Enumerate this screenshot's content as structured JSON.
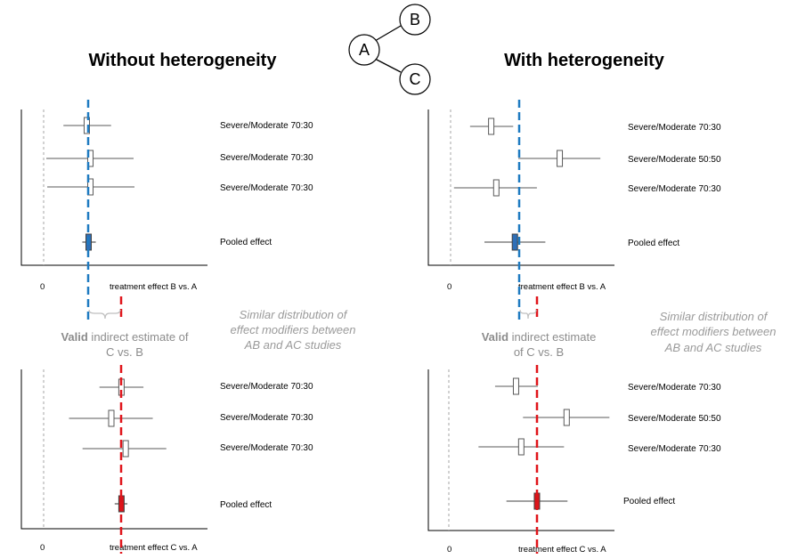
{
  "network": {
    "nodes": [
      "A",
      "B",
      "C"
    ]
  },
  "colors": {
    "blue_line": "#1f7bc1",
    "red_line": "#e0141a",
    "blue_fill": "#2e6fb7",
    "red_fill": "#d8141a",
    "zero_line": "#a6a6a6",
    "gray_text": "#9a9a9a"
  },
  "left": {
    "title": "Without heterogeneity",
    "top": {
      "zero_label": "0",
      "axis_label": "treatment effect B vs. A",
      "studies": [
        {
          "label": "Severe/Moderate 70:30",
          "est": 0.48,
          "lo": 0.22,
          "hi": 0.75
        },
        {
          "label": "Severe/Moderate 70:30",
          "est": 0.52,
          "lo": 0.03,
          "hi": 1.0
        },
        {
          "label": "Severe/Moderate 70:30",
          "est": 0.52,
          "lo": 0.04,
          "hi": 1.01
        }
      ],
      "pooled": {
        "label": "Pooled effect",
        "est": 0.5,
        "lo": 0.43,
        "hi": 0.58
      }
    },
    "bottom": {
      "zero_label": "0",
      "axis_label": "treatment effect C vs. A",
      "studies": [
        {
          "label": "Severe/Moderate 70:30",
          "est": 0.92,
          "lo": 0.66,
          "hi": 1.18
        },
        {
          "label": "Severe/Moderate 70:30",
          "est": 0.8,
          "lo": 0.3,
          "hi": 1.29
        },
        {
          "label": "Severe/Moderate 70:30",
          "est": 0.97,
          "lo": 0.46,
          "hi": 1.45
        }
      ],
      "pooled": {
        "label": "Pooled effect",
        "est": 0.92,
        "lo": 0.84,
        "hi": 0.99
      }
    },
    "verdict_bold": "Valid",
    "verdict_rest": " indirect estimate of",
    "verdict_line2": "C vs. B"
  },
  "right": {
    "title": "With heterogeneity",
    "top": {
      "zero_label": "0",
      "axis_label": "treatment effect B vs. A",
      "studies": [
        {
          "label": "Severe/Moderate 70:30",
          "est": 0.48,
          "lo": 0.23,
          "hi": 0.74
        },
        {
          "label": "Severe/Moderate 50:50",
          "est": 1.29,
          "lo": 0.8,
          "hi": 1.77
        },
        {
          "label": "Severe/Moderate 70:30",
          "est": 0.54,
          "lo": 0.04,
          "hi": 1.02
        }
      ],
      "pooled": {
        "label": "Pooled effect",
        "est": 0.76,
        "lo": 0.4,
        "hi": 1.12
      }
    },
    "bottom": {
      "zero_label": "0",
      "axis_label": "treatment effect C vs. A",
      "studies": [
        {
          "label": "Severe/Moderate 70:30",
          "est": 0.77,
          "lo": 0.53,
          "hi": 1.02
        },
        {
          "label": "Severe/Moderate 50:50",
          "est": 1.35,
          "lo": 0.85,
          "hi": 1.84
        },
        {
          "label": "Severe/Moderate 70:30",
          "est": 0.83,
          "lo": 0.34,
          "hi": 1.32
        }
      ],
      "pooled": {
        "label": "Pooled effect",
        "est": 1.01,
        "lo": 0.66,
        "hi": 1.36
      }
    },
    "verdict_bold": "Valid",
    "verdict_rest": " indirect estimate",
    "verdict_line2": "of C vs. B"
  },
  "note": {
    "line1": "Similar distribution of",
    "line2": "effect modifiers between",
    "line3": "AB and AC studies"
  }
}
